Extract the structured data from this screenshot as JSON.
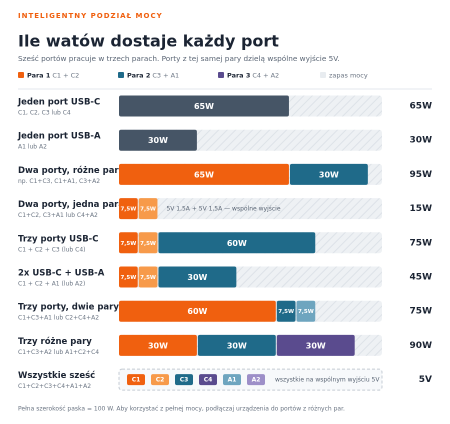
{
  "chart_data": {
    "type": "stacked-bar",
    "eyebrow": "INTELIGENTNY PODZIAŁ MOCY",
    "title": "Ile watów dostaje każdy port",
    "subtitle": "Sześć portów pracuje w trzech parach. Porty z tej samej pary dzielą wspólne wyjście 5V.",
    "legend": [
      {
        "name": "Para 1",
        "ports": "C1 + C2",
        "color": "#f0600f"
      },
      {
        "name": "Para 2",
        "ports": "C3 + A1",
        "color": "#1f6a89"
      },
      {
        "name": "Para 3",
        "ports": "C4 + A2",
        "color": "#5a4b8e"
      },
      {
        "name": "zapas mocy",
        "color": "#e8ecf0"
      }
    ],
    "xlim": [
      0,
      100
    ],
    "rows": [
      {
        "label": "Jeden port USB-C",
        "sub": "C1, C2, C3 lub C4",
        "total": "65W",
        "segments": [
          {
            "value": 65,
            "label": "65W",
            "color": "#465566"
          }
        ]
      },
      {
        "label": "Jeden port USB-A",
        "sub": "A1 lub A2",
        "total": "30W",
        "segments": [
          {
            "value": 30,
            "label": "30W",
            "color": "#465566"
          }
        ]
      },
      {
        "label": "Dwa porty, różne pary",
        "sub": "np. C1+C3, C1+A1, C3+A2",
        "total": "95W",
        "segments": [
          {
            "value": 65,
            "label": "65W",
            "color": "#f0600f"
          },
          {
            "value": 30,
            "label": "30W",
            "color": "#1f6a89"
          }
        ]
      },
      {
        "label": "Dwa porty, jedna para",
        "sub": "C1+C2, C3+A1 lub C4+A2",
        "total": "15W",
        "note": "5V 1,5A + 5V 1,5A — wspólne wyjście",
        "segments": [
          {
            "value": 7.5,
            "label": "7,5W",
            "color": "#f0600f"
          },
          {
            "value": 7.5,
            "label": "7,5W",
            "color": "#f79a4a"
          }
        ]
      },
      {
        "label": "Trzy porty USB-C",
        "sub": "C1 + C2 + C3 (lub C4)",
        "total": "75W",
        "segments": [
          {
            "value": 7.5,
            "label": "7,5W",
            "color": "#f0600f"
          },
          {
            "value": 7.5,
            "label": "7,5W",
            "color": "#f79a4a"
          },
          {
            "value": 60,
            "label": "60W",
            "color": "#1f6a89"
          }
        ]
      },
      {
        "label": "2x USB-C + USB-A",
        "sub": "C1 + C2 + A1 (lub A2)",
        "total": "45W",
        "segments": [
          {
            "value": 7.5,
            "label": "7,5W",
            "color": "#f0600f"
          },
          {
            "value": 7.5,
            "label": "7,5W",
            "color": "#f79a4a"
          },
          {
            "value": 30,
            "label": "30W",
            "color": "#1f6a89"
          }
        ]
      },
      {
        "label": "Trzy porty, dwie pary",
        "sub": "C1+C3+A1 lub C2+C4+A2",
        "total": "75W",
        "segments": [
          {
            "value": 60,
            "label": "60W",
            "color": "#f0600f"
          },
          {
            "value": 7.5,
            "label": "7,5W",
            "color": "#1f6a89"
          },
          {
            "value": 7.5,
            "label": "7,5W",
            "color": "#6ea5bf"
          }
        ]
      },
      {
        "label": "Trzy różne pary",
        "sub": "C1+C3+A2 lub A1+C2+C4",
        "total": "90W",
        "segments": [
          {
            "value": 30,
            "label": "30W",
            "color": "#f0600f"
          },
          {
            "value": 30,
            "label": "30W",
            "color": "#1f6a89"
          },
          {
            "value": 30,
            "label": "30W",
            "color": "#5a4b8e"
          }
        ]
      },
      {
        "label": "Wszystkie sześć",
        "sub": "C1+C2+C3+C4+A1+A2",
        "total": "5V",
        "note": "wszystkie na wspólnym wyjściu 5V",
        "chips": [
          {
            "label": "C1",
            "color": "#f0600f"
          },
          {
            "label": "C2",
            "color": "#f79a4a"
          },
          {
            "label": "C3",
            "color": "#1f6a89"
          },
          {
            "label": "C4",
            "color": "#5a4b8e"
          },
          {
            "label": "A1",
            "color": "#6ea5bf"
          },
          {
            "label": "A2",
            "color": "#9d8fc8"
          }
        ]
      }
    ],
    "footer": "Pełna szerokość paska = 100 W. Aby korzystać z pełnej mocy, podłączaj urządzenia do portów z różnych par."
  }
}
